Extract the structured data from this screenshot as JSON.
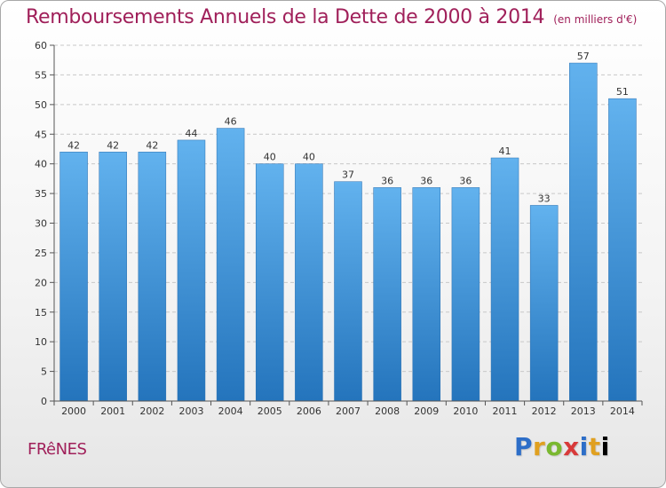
{
  "chart_data": {
    "type": "bar",
    "title": "Remboursements Annuels de la Dette de 2000 à 2014",
    "subtitle": "(en milliers d'€)",
    "xlabel": "",
    "ylabel": "",
    "categories": [
      "2000",
      "2001",
      "2002",
      "2003",
      "2004",
      "2005",
      "2006",
      "2007",
      "2008",
      "2009",
      "2010",
      "2011",
      "2012",
      "2013",
      "2014"
    ],
    "values": [
      42,
      42,
      42,
      44,
      46,
      40,
      40,
      37,
      36,
      36,
      36,
      41,
      33,
      57,
      51
    ],
    "data_labels": [
      "42",
      "42",
      "42",
      "44",
      "46",
      "40",
      "40",
      "37",
      "36",
      "36",
      "36",
      "41",
      "33",
      "57",
      "51"
    ],
    "ylim": [
      0,
      60
    ],
    "yticks": [
      0,
      5,
      10,
      15,
      20,
      25,
      30,
      35,
      40,
      45,
      50,
      55,
      60
    ],
    "grid": true,
    "legend": "none",
    "colors": {
      "bar_light": "#5eaeea",
      "bar_dark": "#2878c0",
      "title": "#a0205a"
    }
  },
  "footer": {
    "commune": "FRêNES",
    "brand_letters": [
      "P",
      "r",
      "o",
      "x",
      "i",
      "t",
      "i"
    ]
  }
}
